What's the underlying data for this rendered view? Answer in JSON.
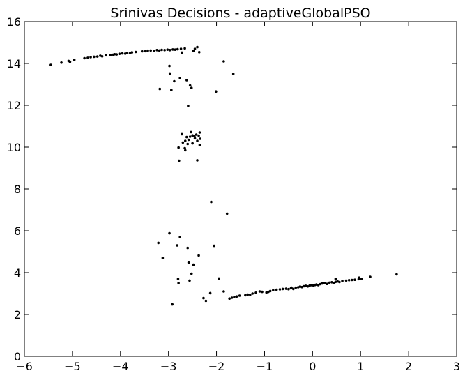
{
  "chart_data": {
    "type": "scatter",
    "title": "Srinivas Decisions - adaptiveGlobalPSO",
    "xlabel": "",
    "ylabel": "",
    "xlim": [
      -6,
      3
    ],
    "ylim": [
      0,
      16
    ],
    "xticks": [
      -6,
      -5,
      -4,
      -3,
      -2,
      -1,
      0,
      1,
      2,
      3
    ],
    "xtick_labels": [
      "−6",
      "−5",
      "−4",
      "−3",
      "−2",
      "−1",
      "0",
      "1",
      "2",
      "3"
    ],
    "yticks": [
      0,
      2,
      4,
      6,
      8,
      10,
      12,
      14,
      16
    ],
    "ytick_labels": [
      "0",
      "2",
      "4",
      "6",
      "8",
      "10",
      "12",
      "14",
      "16"
    ],
    "grid": false,
    "marker_color": "#000000",
    "series": [
      {
        "name": "",
        "points": [
          [
            -5.45,
            13.93
          ],
          [
            -5.23,
            14.04
          ],
          [
            -5.08,
            14.12
          ],
          [
            -5.05,
            14.08
          ],
          [
            -4.96,
            14.17
          ],
          [
            -4.75,
            14.25
          ],
          [
            -4.68,
            14.27
          ],
          [
            -4.62,
            14.3
          ],
          [
            -4.55,
            14.32
          ],
          [
            -4.48,
            14.33
          ],
          [
            -4.42,
            14.37
          ],
          [
            -4.38,
            14.34
          ],
          [
            -4.3,
            14.39
          ],
          [
            -4.21,
            14.4
          ],
          [
            -4.15,
            14.42
          ],
          [
            -4.12,
            14.44
          ],
          [
            -4.08,
            14.43
          ],
          [
            -4.02,
            14.46
          ],
          [
            -3.96,
            14.48
          ],
          [
            -3.9,
            14.47
          ],
          [
            -3.86,
            14.5
          ],
          [
            -3.8,
            14.49
          ],
          [
            -3.76,
            14.53
          ],
          [
            -3.68,
            14.55
          ],
          [
            -3.55,
            14.58
          ],
          [
            -3.48,
            14.59
          ],
          [
            -3.43,
            14.61
          ],
          [
            -3.37,
            14.62
          ],
          [
            -3.3,
            14.6
          ],
          [
            -3.24,
            14.64
          ],
          [
            -3.19,
            14.62
          ],
          [
            -3.14,
            14.65
          ],
          [
            -3.08,
            14.64
          ],
          [
            -3.02,
            14.66
          ],
          [
            -2.97,
            14.64
          ],
          [
            -2.91,
            14.67
          ],
          [
            -2.86,
            14.66
          ],
          [
            -2.81,
            14.68
          ],
          [
            -2.74,
            14.7
          ],
          [
            -2.66,
            14.72
          ],
          [
            -2.45,
            14.7
          ],
          [
            -2.4,
            14.78
          ],
          [
            -2.36,
            14.54
          ],
          [
            -2.72,
            14.52
          ],
          [
            -2.48,
            14.6
          ],
          [
            -1.85,
            14.1
          ],
          [
            -1.65,
            13.5
          ],
          [
            -2.98,
            13.88
          ],
          [
            -2.97,
            13.52
          ],
          [
            -2.88,
            13.15
          ],
          [
            -2.76,
            13.3
          ],
          [
            -2.62,
            13.2
          ],
          [
            -3.18,
            12.78
          ],
          [
            -2.94,
            12.73
          ],
          [
            -2.52,
            12.83
          ],
          [
            -2.55,
            12.95
          ],
          [
            -2.01,
            12.66
          ],
          [
            -2.59,
            11.97
          ],
          [
            -2.72,
            10.62
          ],
          [
            -2.62,
            10.48
          ],
          [
            -2.55,
            10.5
          ],
          [
            -2.53,
            10.72
          ],
          [
            -2.5,
            10.56
          ],
          [
            -2.46,
            10.52
          ],
          [
            -2.42,
            10.6
          ],
          [
            -2.37,
            10.55
          ],
          [
            -2.35,
            10.7
          ],
          [
            -2.34,
            10.4
          ],
          [
            -2.4,
            10.3
          ],
          [
            -2.45,
            10.42
          ],
          [
            -2.58,
            10.35
          ],
          [
            -2.65,
            10.3
          ],
          [
            -2.7,
            10.22
          ],
          [
            -2.5,
            10.18
          ],
          [
            -2.6,
            10.15
          ],
          [
            -2.35,
            10.1
          ],
          [
            -2.79,
            9.98
          ],
          [
            -2.66,
            9.95
          ],
          [
            -2.65,
            9.85
          ],
          [
            -2.78,
            9.35
          ],
          [
            -2.4,
            9.37
          ],
          [
            -2.11,
            7.38
          ],
          [
            -1.78,
            6.82
          ],
          [
            -2.98,
            5.88
          ],
          [
            -3.21,
            5.42
          ],
          [
            -2.76,
            5.7
          ],
          [
            -2.82,
            5.3
          ],
          [
            -2.6,
            5.18
          ],
          [
            -2.05,
            5.28
          ],
          [
            -2.37,
            4.82
          ],
          [
            -3.12,
            4.7
          ],
          [
            -2.58,
            4.48
          ],
          [
            -2.48,
            4.38
          ],
          [
            -2.52,
            3.95
          ],
          [
            -2.56,
            3.62
          ],
          [
            -1.95,
            3.72
          ],
          [
            -2.8,
            3.7
          ],
          [
            -2.79,
            3.5
          ],
          [
            -2.13,
            3.02
          ],
          [
            -1.85,
            3.1
          ],
          [
            -2.27,
            2.78
          ],
          [
            -2.22,
            2.65
          ],
          [
            -2.92,
            2.48
          ],
          [
            -1.73,
            2.76
          ],
          [
            -1.68,
            2.8
          ],
          [
            -1.63,
            2.84
          ],
          [
            -1.58,
            2.86
          ],
          [
            -1.52,
            2.9
          ],
          [
            -1.4,
            2.92
          ],
          [
            -1.35,
            2.95
          ],
          [
            -1.3,
            2.94
          ],
          [
            -1.25,
            3.0
          ],
          [
            -1.18,
            3.04
          ],
          [
            -1.1,
            3.1
          ],
          [
            -1.05,
            3.08
          ],
          [
            -0.96,
            3.05
          ],
          [
            -0.92,
            3.08
          ],
          [
            -0.88,
            3.12
          ],
          [
            -0.82,
            3.16
          ],
          [
            -0.75,
            3.18
          ],
          [
            -0.68,
            3.2
          ],
          [
            -0.62,
            3.22
          ],
          [
            -0.55,
            3.23
          ],
          [
            -0.5,
            3.21
          ],
          [
            -0.45,
            3.25
          ],
          [
            -0.4,
            3.22
          ],
          [
            -0.35,
            3.28
          ],
          [
            -0.3,
            3.3
          ],
          [
            -0.26,
            3.33
          ],
          [
            -0.22,
            3.31
          ],
          [
            -0.18,
            3.35
          ],
          [
            -0.14,
            3.37
          ],
          [
            -0.1,
            3.34
          ],
          [
            -0.06,
            3.38
          ],
          [
            -0.02,
            3.4
          ],
          [
            0.02,
            3.38
          ],
          [
            0.05,
            3.41
          ],
          [
            0.08,
            3.43
          ],
          [
            0.12,
            3.4
          ],
          [
            0.16,
            3.45
          ],
          [
            0.2,
            3.48
          ],
          [
            0.25,
            3.5
          ],
          [
            0.3,
            3.46
          ],
          [
            0.35,
            3.52
          ],
          [
            0.4,
            3.54
          ],
          [
            0.45,
            3.5
          ],
          [
            0.48,
            3.56
          ],
          [
            0.52,
            3.58
          ],
          [
            0.56,
            3.55
          ],
          [
            0.62,
            3.6
          ],
          [
            0.7,
            3.62
          ],
          [
            0.76,
            3.64
          ],
          [
            0.82,
            3.65
          ],
          [
            0.88,
            3.66
          ],
          [
            0.96,
            3.69
          ],
          [
            1.02,
            3.7
          ],
          [
            1.2,
            3.8
          ],
          [
            1.75,
            3.92
          ],
          [
            0.48,
            3.7
          ],
          [
            0.97,
            3.76
          ],
          [
            -0.44,
            3.28
          ]
        ]
      }
    ]
  }
}
